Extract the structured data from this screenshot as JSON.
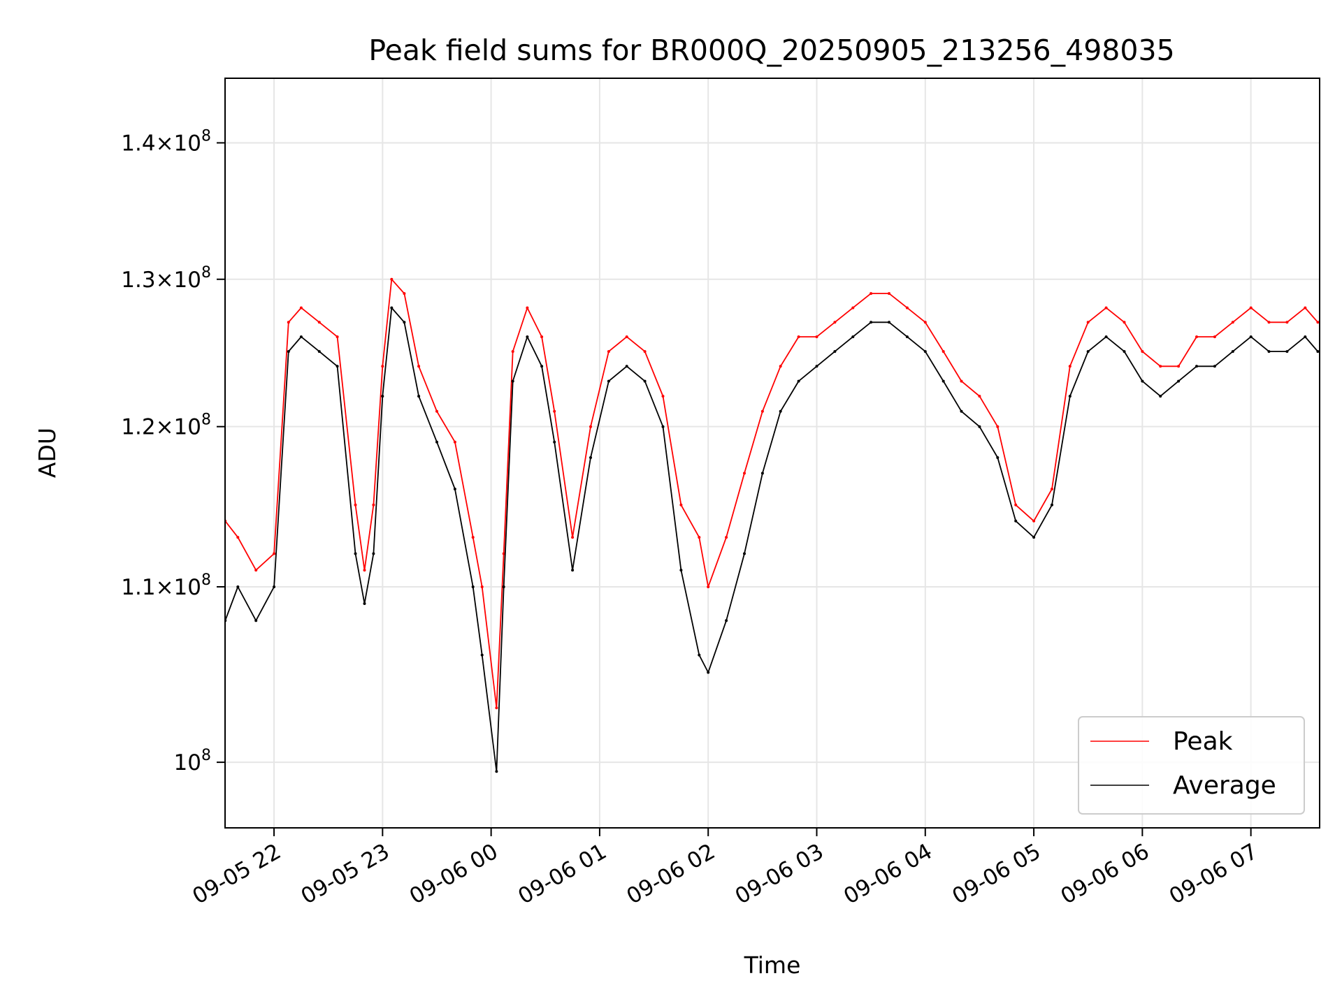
{
  "chart_data": {
    "type": "line",
    "title": "Peak field sums for BR000Q_20250905_213256_498035",
    "xlabel": "Time",
    "ylabel": "ADU",
    "yscale": "log",
    "ylim": [
      96500000,
      145000000
    ],
    "xlim": [
      "2025-09-05 21:32:56",
      "2025-09-06 07:38:00"
    ],
    "grid": true,
    "legend_position": "lower-right",
    "x_ticks": [
      {
        "t": "2025-09-05 22:00",
        "label": "09-05 22"
      },
      {
        "t": "2025-09-05 23:00",
        "label": "09-05 23"
      },
      {
        "t": "2025-09-06 00:00",
        "label": "09-06 00"
      },
      {
        "t": "2025-09-06 01:00",
        "label": "09-06 01"
      },
      {
        "t": "2025-09-06 02:00",
        "label": "09-06 02"
      },
      {
        "t": "2025-09-06 03:00",
        "label": "09-06 03"
      },
      {
        "t": "2025-09-06 04:00",
        "label": "09-06 04"
      },
      {
        "t": "2025-09-06 05:00",
        "label": "09-06 05"
      },
      {
        "t": "2025-09-06 06:00",
        "label": "09-06 06"
      },
      {
        "t": "2025-09-06 07:00",
        "label": "09-06 07"
      }
    ],
    "y_ticks": [
      {
        "value": 100000000,
        "mantissa": "",
        "base": "10",
        "exp": "8"
      },
      {
        "value": 110000000,
        "mantissa": "1.1",
        "base": "10",
        "exp": "8"
      },
      {
        "value": 120000000,
        "mantissa": "1.2",
        "base": "10",
        "exp": "8"
      },
      {
        "value": 130000000,
        "mantissa": "1.3",
        "base": "10",
        "exp": "8"
      },
      {
        "value": 140000000,
        "mantissa": "1.4",
        "base": "10",
        "exp": "8"
      }
    ],
    "x": [
      "2025-09-05 21:33",
      "2025-09-05 21:40",
      "2025-09-05 21:50",
      "2025-09-05 22:00",
      "2025-09-05 22:08",
      "2025-09-05 22:15",
      "2025-09-05 22:25",
      "2025-09-05 22:35",
      "2025-09-05 22:45",
      "2025-09-05 22:50",
      "2025-09-05 22:55",
      "2025-09-05 23:00",
      "2025-09-05 23:05",
      "2025-09-05 23:12",
      "2025-09-05 23:20",
      "2025-09-05 23:30",
      "2025-09-05 23:40",
      "2025-09-05 23:50",
      "2025-09-05 23:55",
      "2025-09-06 00:03",
      "2025-09-06 00:07",
      "2025-09-06 00:12",
      "2025-09-06 00:20",
      "2025-09-06 00:28",
      "2025-09-06 00:35",
      "2025-09-06 00:45",
      "2025-09-06 00:55",
      "2025-09-06 01:05",
      "2025-09-06 01:15",
      "2025-09-06 01:25",
      "2025-09-06 01:35",
      "2025-09-06 01:45",
      "2025-09-06 01:55",
      "2025-09-06 02:00",
      "2025-09-06 02:10",
      "2025-09-06 02:20",
      "2025-09-06 02:30",
      "2025-09-06 02:40",
      "2025-09-06 02:50",
      "2025-09-06 03:00",
      "2025-09-06 03:10",
      "2025-09-06 03:20",
      "2025-09-06 03:30",
      "2025-09-06 03:40",
      "2025-09-06 03:50",
      "2025-09-06 04:00",
      "2025-09-06 04:10",
      "2025-09-06 04:20",
      "2025-09-06 04:30",
      "2025-09-06 04:40",
      "2025-09-06 04:50",
      "2025-09-06 05:00",
      "2025-09-06 05:10",
      "2025-09-06 05:20",
      "2025-09-06 05:30",
      "2025-09-06 05:40",
      "2025-09-06 05:50",
      "2025-09-06 06:00",
      "2025-09-06 06:10",
      "2025-09-06 06:20",
      "2025-09-06 06:30",
      "2025-09-06 06:40",
      "2025-09-06 06:50",
      "2025-09-06 07:00",
      "2025-09-06 07:10",
      "2025-09-06 07:20",
      "2025-09-06 07:30",
      "2025-09-06 07:37"
    ],
    "series": [
      {
        "name": "Peak",
        "color": "#ff0000",
        "values": [
          114000000,
          113000000,
          111000000,
          112000000,
          127000000,
          128000000,
          127000000,
          126000000,
          115000000,
          111000000,
          115000000,
          124000000,
          130000000,
          129000000,
          124000000,
          121000000,
          119000000,
          113000000,
          110000000,
          103000000,
          112000000,
          125000000,
          128000000,
          126000000,
          121000000,
          113000000,
          120000000,
          125000000,
          126000000,
          125000000,
          122000000,
          115000000,
          113000000,
          110000000,
          113000000,
          117000000,
          121000000,
          124000000,
          126000000,
          126000000,
          127000000,
          128000000,
          129000000,
          129000000,
          128000000,
          127000000,
          125000000,
          123000000,
          122000000,
          120000000,
          115000000,
          114000000,
          116000000,
          124000000,
          127000000,
          128000000,
          127000000,
          125000000,
          124000000,
          124000000,
          126000000,
          126000000,
          127000000,
          128000000,
          127000000,
          127000000,
          128000000,
          127000000
        ]
      },
      {
        "name": "Average",
        "color": "#000000",
        "values": [
          108000000,
          110000000,
          108000000,
          110000000,
          125000000,
          126000000,
          125000000,
          124000000,
          112000000,
          109000000,
          112000000,
          122000000,
          128000000,
          127000000,
          122000000,
          119000000,
          116000000,
          110000000,
          106000000,
          99500000,
          110000000,
          123000000,
          126000000,
          124000000,
          119000000,
          111000000,
          118000000,
          123000000,
          124000000,
          123000000,
          120000000,
          111000000,
          106000000,
          105000000,
          108000000,
          112000000,
          117000000,
          121000000,
          123000000,
          124000000,
          125000000,
          126000000,
          127000000,
          127000000,
          126000000,
          125000000,
          123000000,
          121000000,
          120000000,
          118000000,
          114000000,
          113000000,
          115000000,
          122000000,
          125000000,
          126000000,
          125000000,
          123000000,
          122000000,
          123000000,
          124000000,
          124000000,
          125000000,
          126000000,
          125000000,
          125000000,
          126000000,
          125000000
        ]
      }
    ]
  }
}
